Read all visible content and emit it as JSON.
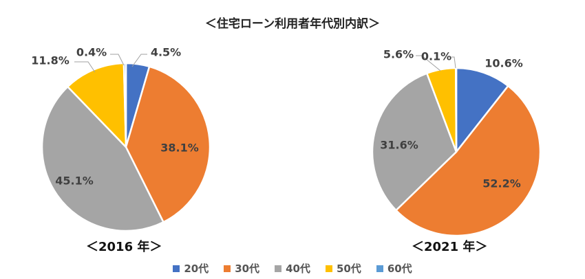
{
  "title": "＜住宅ローン利用者年代別内訳＞",
  "chart_data": {
    "type": "pie",
    "legend_position": "bottom",
    "categories": [
      "20代",
      "30代",
      "40代",
      "50代",
      "60代"
    ],
    "colors": [
      "#4472C4",
      "#ED7D31",
      "#A5A5A5",
      "#FFC000",
      "#5B9BD5"
    ],
    "charts": [
      {
        "caption": "＜2016 年＞",
        "values": [
          4.5,
          38.1,
          45.1,
          11.8,
          0.4
        ],
        "labels": [
          "4.5%",
          "38.1%",
          "45.1%",
          "11.8%",
          "0.4%"
        ]
      },
      {
        "caption": "＜2021 年＞",
        "values": [
          10.6,
          52.2,
          31.6,
          5.6,
          0.1
        ],
        "labels": [
          "10.6%",
          "52.2%",
          "31.6%",
          "5.6%",
          "0.1%"
        ]
      }
    ]
  }
}
